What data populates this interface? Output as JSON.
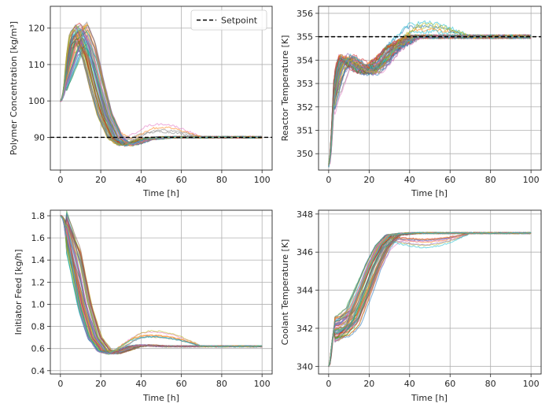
{
  "chart_data": [
    {
      "type": "line",
      "id": "polymer",
      "title": "",
      "xlabel": "Time [h]",
      "ylabel": "Polymer Concentration [kg/m³]",
      "xlim": [
        -5,
        105
      ],
      "ylim": [
        81,
        126
      ],
      "xticks": [
        0,
        20,
        40,
        60,
        80,
        100
      ],
      "yticks": [
        90,
        100,
        110,
        120
      ],
      "grid": true,
      "legend": {
        "location": "top-right",
        "entries": [
          {
            "label": "Setpoint",
            "style": "black dashed"
          }
        ]
      },
      "setpoint": 90,
      "n_trajectories": 60,
      "trend_x": [
        0,
        2,
        5,
        8,
        12,
        16,
        20,
        25,
        30,
        35,
        40,
        50,
        60,
        80,
        100
      ],
      "trend_y": [
        100,
        106,
        116,
        118,
        113,
        104,
        96,
        90,
        88,
        88.5,
        89.5,
        90,
        90,
        90,
        90
      ]
    },
    {
      "type": "line",
      "id": "reactor",
      "title": "",
      "xlabel": "Time [h]",
      "ylabel": "Reactor Temperature [K]",
      "xlim": [
        -5,
        105
      ],
      "ylim": [
        349.3,
        356.3
      ],
      "xticks": [
        0,
        20,
        40,
        60,
        80,
        100
      ],
      "yticks": [
        350,
        351,
        352,
        353,
        354,
        355,
        356
      ],
      "grid": true,
      "setpoint": 355,
      "n_trajectories": 60,
      "trend_x": [
        0,
        1,
        2,
        4,
        6,
        10,
        15,
        20,
        25,
        30,
        40,
        50,
        100
      ],
      "trend_y": [
        349.5,
        351.8,
        352.5,
        353.6,
        354.1,
        353.9,
        353.6,
        353.6,
        354.0,
        354.5,
        355.0,
        355.0,
        355.0
      ]
    },
    {
      "type": "line",
      "id": "initiator",
      "title": "",
      "xlabel": "Time [h]",
      "ylabel": "Initiator Feed [kg/h]",
      "xlim": [
        -5,
        105
      ],
      "ylim": [
        0.37,
        1.85
      ],
      "xticks": [
        0,
        20,
        40,
        60,
        80,
        100
      ],
      "yticks": [
        0.4,
        0.6,
        0.8,
        1.0,
        1.2,
        1.4,
        1.6,
        1.8
      ],
      "grid": true,
      "n_trajectories": 60,
      "trend_x": [
        0,
        2,
        5,
        10,
        15,
        20,
        25,
        30,
        35,
        40,
        50,
        60,
        100
      ],
      "trend_y": [
        1.8,
        1.7,
        1.45,
        1.0,
        0.7,
        0.58,
        0.56,
        0.59,
        0.62,
        0.63,
        0.62,
        0.62,
        0.62
      ]
    },
    {
      "type": "line",
      "id": "coolant",
      "title": "",
      "xlabel": "Time [h]",
      "ylabel": "Coolant Temperature [K]",
      "xlim": [
        -5,
        105
      ],
      "ylim": [
        339.6,
        348.2
      ],
      "xticks": [
        0,
        20,
        40,
        60,
        80,
        100
      ],
      "yticks": [
        340,
        342,
        344,
        346,
        348
      ],
      "grid": true,
      "n_trajectories": 60,
      "trend_x": [
        0,
        1,
        2,
        5,
        10,
        15,
        20,
        25,
        30,
        40,
        50,
        60,
        100
      ],
      "trend_y": [
        340,
        341.8,
        341.9,
        342.0,
        342.5,
        343.8,
        345.2,
        346.3,
        346.9,
        347.0,
        347.0,
        347.0,
        347.0
      ]
    }
  ],
  "palette": [
    "#1f77b4",
    "#ff7f0e",
    "#2ca02c",
    "#d62728",
    "#9467bd",
    "#8c564b",
    "#e377c2",
    "#7f7f7f",
    "#bcbd22",
    "#17becf"
  ]
}
